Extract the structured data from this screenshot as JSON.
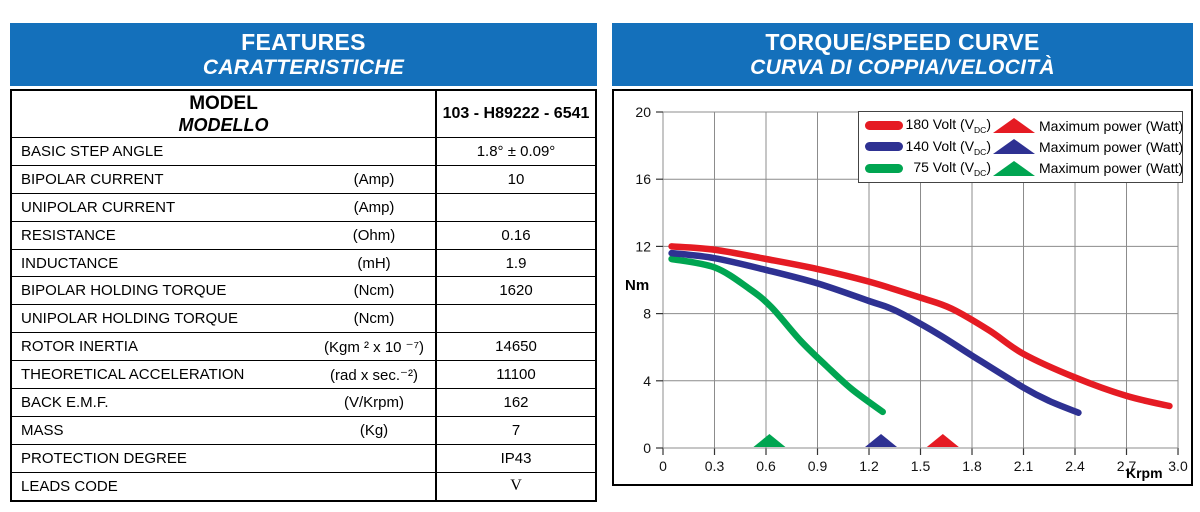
{
  "colors": {
    "header_blue": "#1470bb",
    "red": "#e51b23",
    "navy": "#2e3192",
    "green": "#00a551",
    "grid": "#8c8c8c"
  },
  "features": {
    "title": "FEATURES",
    "subtitle": "CARATTERISTICHE",
    "model_label_en": "MODEL",
    "model_label_it": "MODELLO",
    "model_value": "103 - H89222 - 6541",
    "rows": [
      {
        "label": "BASIC STEP ANGLE",
        "unit": "",
        "value": "1.8° ± 0.09°"
      },
      {
        "label": "BIPOLAR CURRENT",
        "unit": "(Amp)",
        "value": "10"
      },
      {
        "label": "UNIPOLAR CURRENT",
        "unit": "(Amp)",
        "value": ""
      },
      {
        "label": "RESISTANCE",
        "unit": "(Ohm)",
        "value": "0.16"
      },
      {
        "label": "INDUCTANCE",
        "unit": "(mH)",
        "value": "1.9"
      },
      {
        "label": "BIPOLAR HOLDING TORQUE",
        "unit": "(Ncm)",
        "value": "1620"
      },
      {
        "label": "UNIPOLAR HOLDING TORQUE",
        "unit": "(Ncm)",
        "value": ""
      },
      {
        "label": "ROTOR INERTIA",
        "unit": "(Kgm ² x 10 ⁻⁷)",
        "value": "14650"
      },
      {
        "label": "THEORETICAL ACCELERATION",
        "unit": "(rad x sec.⁻²)",
        "value": "11100"
      },
      {
        "label": "BACK E.M.F.",
        "unit": "(V/Krpm)",
        "value": "162"
      },
      {
        "label": "MASS",
        "unit": "(Kg)",
        "value": "7"
      },
      {
        "label": "PROTECTION DEGREE",
        "unit": "",
        "value": "IP43"
      },
      {
        "label": "LEADS CODE",
        "unit": "",
        "value": "V",
        "value_serif": true
      }
    ]
  },
  "chart_data": {
    "type": "line",
    "title": "TORQUE/SPEED CURVE",
    "subtitle": "CURVA DI COPPIA/VELOCITÀ",
    "xlabel": "Krpm",
    "ylabel": "Nm",
    "xlim": [
      0,
      3.0
    ],
    "ylim": [
      0,
      20
    ],
    "xticks": [
      0,
      0.3,
      0.6,
      0.9,
      1.2,
      1.5,
      1.8,
      2.1,
      2.4,
      2.7,
      3.0
    ],
    "xtick_labels": [
      "0",
      "0.3",
      "0.6",
      "0.9",
      "1.2",
      "1.5",
      "1.8",
      "2.1",
      "2.4",
      "2.7",
      "3.0"
    ],
    "yticks": [
      0,
      4,
      8,
      12,
      16,
      20
    ],
    "grid": true,
    "legend_position": "top-right",
    "marker_label": "Maximum power (Watt)",
    "series": [
      {
        "name": "180 Volt (VDC)",
        "legend_pre": "180 Volt (V",
        "legend_sub": "DC",
        "legend_post": ")",
        "color": "#e51b23",
        "points": [
          [
            0.05,
            12.0
          ],
          [
            0.3,
            11.8
          ],
          [
            0.6,
            11.25
          ],
          [
            0.9,
            10.65
          ],
          [
            1.2,
            9.9
          ],
          [
            1.5,
            8.95
          ],
          [
            1.68,
            8.3
          ],
          [
            1.9,
            7.0
          ],
          [
            2.1,
            5.6
          ],
          [
            2.4,
            4.2
          ],
          [
            2.7,
            3.1
          ],
          [
            2.95,
            2.5
          ]
        ]
      },
      {
        "name": "140 Volt (VDC)",
        "legend_pre": "140 Volt (V",
        "legend_sub": "DC",
        "legend_post": ")",
        "color": "#2e3192",
        "points": [
          [
            0.05,
            11.6
          ],
          [
            0.3,
            11.3
          ],
          [
            0.6,
            10.6
          ],
          [
            0.9,
            9.8
          ],
          [
            1.2,
            8.75
          ],
          [
            1.35,
            8.2
          ],
          [
            1.6,
            6.8
          ],
          [
            1.8,
            5.5
          ],
          [
            2.1,
            3.6
          ],
          [
            2.25,
            2.8
          ],
          [
            2.42,
            2.1
          ]
        ]
      },
      {
        "name": "75 Volt (VDC)",
        "legend_pre": "75 Volt (V",
        "legend_sub": "DC",
        "legend_post": ")",
        "color": "#00a551",
        "points": [
          [
            0.05,
            11.25
          ],
          [
            0.3,
            10.75
          ],
          [
            0.5,
            9.5
          ],
          [
            0.63,
            8.4
          ],
          [
            0.8,
            6.4
          ],
          [
            0.95,
            4.9
          ],
          [
            1.1,
            3.5
          ],
          [
            1.28,
            2.15
          ]
        ]
      }
    ],
    "max_power_markers": [
      {
        "series": "75 Volt (VDC)",
        "x": 0.62,
        "color": "#00a551"
      },
      {
        "series": "140 Volt (VDC)",
        "x": 1.27,
        "color": "#2e3192"
      },
      {
        "series": "180 Volt (VDC)",
        "x": 1.63,
        "color": "#e51b23"
      }
    ]
  }
}
